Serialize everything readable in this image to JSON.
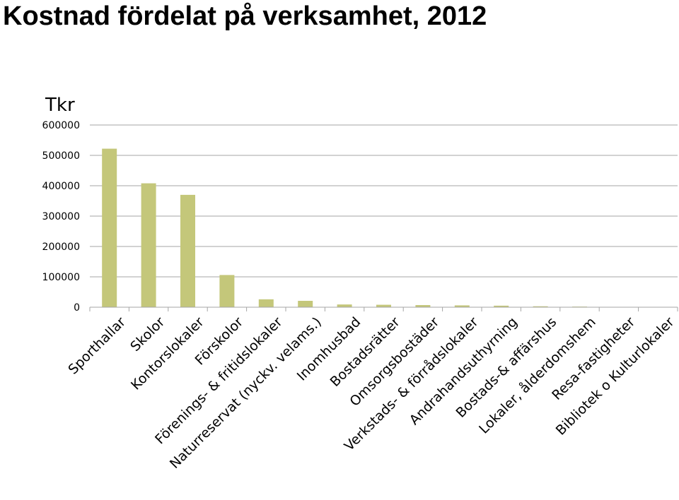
{
  "chart_data": {
    "type": "bar",
    "title": "Kostnad fördelat på verksamhet, 2012",
    "ylabel": "Tkr",
    "xlabel": "",
    "ylim": [
      0,
      600000
    ],
    "yticks": [
      "0",
      "100000",
      "200000",
      "300000",
      "400000",
      "500000",
      "600000"
    ],
    "grid": true,
    "bar_color": "#c4c77a",
    "categories": [
      "Sporthallar",
      "Skolor",
      "Kontorslokaler",
      "Förskolor",
      "Förenings- & fritidslokaler",
      "Naturreservat (nyckv. velams.)",
      "Inomhusbad",
      "Bostadsrätter",
      "Omsorgsbostäder",
      "Verkstads- & förrådslokaler",
      "Andrahandsuthyrning",
      "Bostads-& affärshus",
      "Lokaler, ålderdomshem",
      "Resa-fastigheter",
      "Bibliotek o Kulturlokaler"
    ],
    "values": [
      522000,
      408000,
      370000,
      106000,
      26000,
      21000,
      9000,
      8000,
      7000,
      6000,
      5000,
      3000,
      2000,
      1000,
      0
    ]
  }
}
